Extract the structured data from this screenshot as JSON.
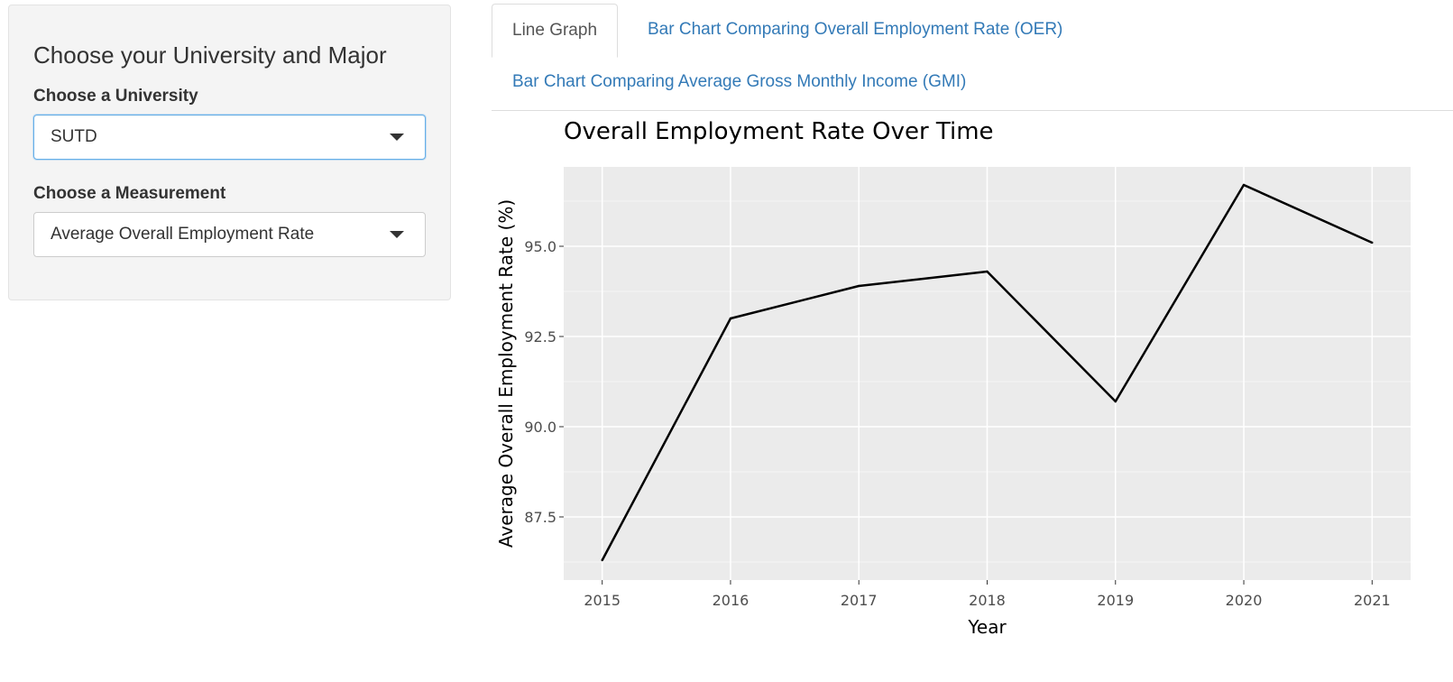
{
  "sidebar": {
    "title": "Choose your University and Major",
    "university_label": "Choose a University",
    "university_value": "SUTD",
    "measurement_label": "Choose a Measurement",
    "measurement_value": "Average Overall Employment Rate"
  },
  "tabs": [
    {
      "label": "Line Graph",
      "active": true
    },
    {
      "label": "Bar Chart Comparing Overall Employment Rate (OER)",
      "active": false
    },
    {
      "label": "Bar Chart Comparing Average Gross Monthly Income (GMI)",
      "active": false
    }
  ],
  "colors": {
    "panel_bg": "#f4f4f4",
    "link": "#337ab7",
    "plot_bg": "#ebebeb",
    "grid": "#ffffff",
    "line": "#000000"
  },
  "icons": {
    "dropdown": "caret-down-icon"
  },
  "chart_data": {
    "type": "line",
    "title": "Overall Employment Rate Over Time",
    "xlabel": "Year",
    "ylabel": "Average Overall Employment Rate (%)",
    "x": [
      2015,
      2016,
      2017,
      2018,
      2019,
      2020,
      2021
    ],
    "values": [
      86.3,
      93.0,
      93.9,
      94.3,
      90.7,
      96.7,
      95.1
    ],
    "xlim": [
      2014.7,
      2021.3
    ],
    "ylim": [
      85.75,
      97.2
    ],
    "y_ticks": [
      87.5,
      90.0,
      92.5,
      95.0
    ],
    "y_tick_labels": [
      "87.5",
      "90.0",
      "92.5",
      "95.0"
    ],
    "x_ticks": [
      2015,
      2016,
      2017,
      2018,
      2019,
      2020,
      2021
    ],
    "x_tick_labels": [
      "2015",
      "2016",
      "2017",
      "2018",
      "2019",
      "2020",
      "2021"
    ],
    "grid": true,
    "legend": "none"
  }
}
